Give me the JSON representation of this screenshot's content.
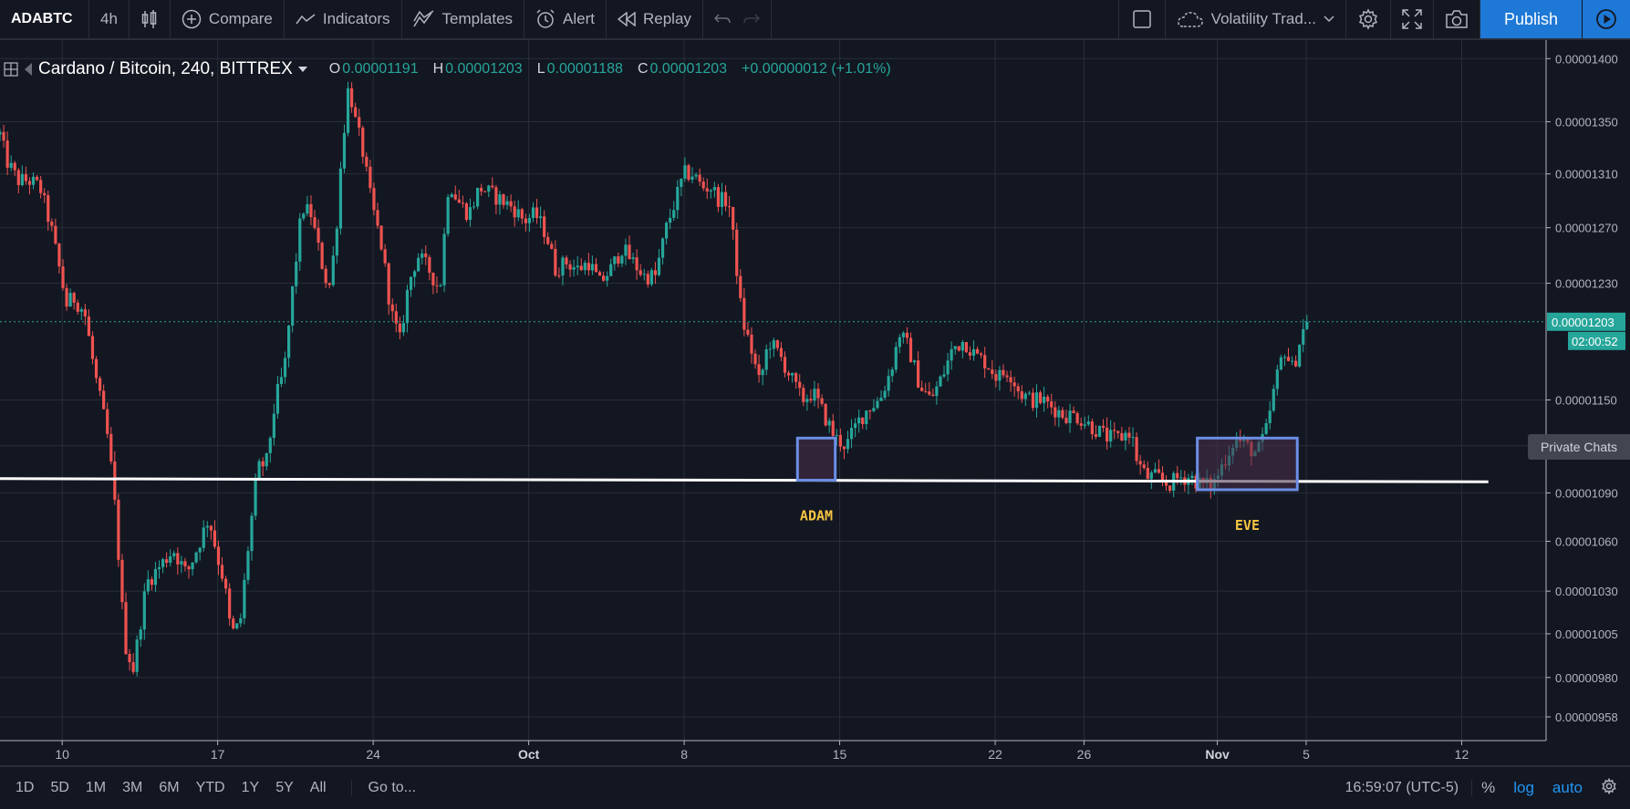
{
  "toolbar": {
    "symbol": "ADABTC",
    "interval": "4h",
    "compare": "Compare",
    "indicators": "Indicators",
    "templates": "Templates",
    "alert": "Alert",
    "replay": "Replay",
    "layout_name": "Volatility Trad...",
    "publish": "Publish"
  },
  "legend": {
    "title": "Cardano / Bitcoin, 240, BITTREX",
    "o_label": "O",
    "o_value": "0.00001191",
    "h_label": "H",
    "h_value": "0.00001203",
    "l_label": "L",
    "l_value": "0.00001188",
    "c_label": "C",
    "c_value": "0.00001203",
    "change": "+0.00000012 (+1.01%)"
  },
  "price_scale": {
    "last_price_label": "0.00001203",
    "countdown_label": "02:00:52",
    "private_chats": "Private Chats"
  },
  "bottom_bar": {
    "ranges": [
      "1D",
      "5D",
      "1M",
      "3M",
      "6M",
      "YTD",
      "1Y",
      "5Y",
      "All"
    ],
    "goto": "Go to...",
    "clock": "16:59:07 (UTC-5)",
    "percent": "%",
    "log": "log",
    "auto": "auto"
  },
  "colors": {
    "background": "#131722",
    "up": "#26a69a",
    "down": "#ef5350",
    "box_border": "#6b8ee6",
    "box_fill": "#4a2f4a",
    "support_line": "#ffffff",
    "annotation_text": "#f5c542"
  },
  "chart_data": {
    "type": "candlestick",
    "title": "Cardano / Bitcoin, 240, BITTREX",
    "y_scale": "log",
    "ylim": [
      9.45e-06,
      1.415e-05
    ],
    "y_ticks": [
      "0.00001400",
      "0.00001350",
      "0.00001310",
      "0.00001270",
      "0.00001230",
      "0.00001150",
      "0.00001120",
      "0.00001090",
      "0.00001060",
      "0.00001030",
      "0.00001005",
      "0.00000980",
      "0.00000958"
    ],
    "y_tick_values": [
      1.4e-05,
      1.35e-05,
      1.31e-05,
      1.27e-05,
      1.23e-05,
      1.15e-05,
      1.12e-05,
      1.09e-05,
      1.06e-05,
      1.03e-05,
      1.005e-05,
      9.8e-06,
      9.58e-06
    ],
    "x_ticks": [
      "10",
      "17",
      "24",
      "Oct",
      "8",
      "15",
      "22",
      "26",
      "Nov",
      "5",
      "12"
    ],
    "x_tick_days": [
      10,
      17,
      24,
      31,
      38,
      45,
      52,
      56,
      62,
      66,
      73
    ],
    "x_range_days": [
      7.2,
      76.8
    ],
    "last_price": 1.203e-05,
    "close_path": [
      [
        7.2,
        1.34e-05
      ],
      [
        7.5,
        1.32e-05
      ],
      [
        8,
        1.305e-05
      ],
      [
        8.5,
        1.305e-05
      ],
      [
        9,
        1.3e-05
      ],
      [
        9.5,
        1.27e-05
      ],
      [
        10.2,
        1.215e-05
      ],
      [
        10.5,
        1.22e-05
      ],
      [
        11,
        1.21e-05
      ],
      [
        11.5,
        1.165e-05
      ],
      [
        12,
        1.13e-05
      ],
      [
        12.3,
        1.095e-05
      ],
      [
        12.6,
        1.04e-05
      ],
      [
        12.8,
        1e-05
      ],
      [
        13.2,
        9.85e-06
      ],
      [
        13.8,
        1.035e-05
      ],
      [
        14.4,
        1.045e-05
      ],
      [
        15,
        1.055e-05
      ],
      [
        15.6,
        1.04e-05
      ],
      [
        16.2,
        1.06e-05
      ],
      [
        16.6,
        1.075e-05
      ],
      [
        17,
        1.05e-05
      ],
      [
        17.3,
        1.035e-05
      ],
      [
        17.6,
        1.005e-05
      ],
      [
        18,
        1.01e-05
      ],
      [
        18.4,
        1.06e-05
      ],
      [
        18.8,
        1.105e-05
      ],
      [
        19.2,
        1.11e-05
      ],
      [
        19.6,
        1.15e-05
      ],
      [
        20,
        1.17e-05
      ],
      [
        20.4,
        1.23e-05
      ],
      [
        20.8,
        1.285e-05
      ],
      [
        21.2,
        1.28e-05
      ],
      [
        21.6,
        1.25e-05
      ],
      [
        22,
        1.225e-05
      ],
      [
        22.3,
        1.26e-05
      ],
      [
        22.6,
        1.33e-05
      ],
      [
        22.9,
        1.38e-05
      ],
      [
        23.2,
        1.35e-05
      ],
      [
        23.5,
        1.33e-05
      ],
      [
        23.9,
        1.29e-05
      ],
      [
        24.4,
        1.255e-05
      ],
      [
        24.8,
        1.21e-05
      ],
      [
        25.2,
        1.19e-05
      ],
      [
        25.6,
        1.23e-05
      ],
      [
        26,
        1.25e-05
      ],
      [
        26.5,
        1.24e-05
      ],
      [
        27,
        1.225e-05
      ],
      [
        27.4,
        1.305e-05
      ],
      [
        27.8,
        1.29e-05
      ],
      [
        28.3,
        1.28e-05
      ],
      [
        28.8,
        1.3e-05
      ],
      [
        29.3,
        1.295e-05
      ],
      [
        29.8,
        1.29e-05
      ],
      [
        30.3,
        1.285e-05
      ],
      [
        30.8,
        1.275e-05
      ],
      [
        31.3,
        1.28e-05
      ],
      [
        31.8,
        1.265e-05
      ],
      [
        32.2,
        1.24e-05
      ],
      [
        32.7,
        1.245e-05
      ],
      [
        33.2,
        1.24e-05
      ],
      [
        33.7,
        1.245e-05
      ],
      [
        34.2,
        1.23e-05
      ],
      [
        34.7,
        1.24e-05
      ],
      [
        35.2,
        1.255e-05
      ],
      [
        35.7,
        1.245e-05
      ],
      [
        36.2,
        1.235e-05
      ],
      [
        36.7,
        1.235e-05
      ],
      [
        37.2,
        1.27e-05
      ],
      [
        37.6,
        1.29e-05
      ],
      [
        38,
        1.31e-05
      ],
      [
        38.4,
        1.31e-05
      ],
      [
        38.8,
        1.3e-05
      ],
      [
        39.2,
        1.3e-05
      ],
      [
        39.6,
        1.29e-05
      ],
      [
        40,
        1.29e-05
      ],
      [
        40.3,
        1.25e-05
      ],
      [
        40.6,
        1.205e-05
      ],
      [
        41,
        1.185e-05
      ],
      [
        41.4,
        1.16e-05
      ],
      [
        41.8,
        1.19e-05
      ],
      [
        42.3,
        1.18e-05
      ],
      [
        42.8,
        1.165e-05
      ],
      [
        43.3,
        1.15e-05
      ],
      [
        43.8,
        1.155e-05
      ],
      [
        44.3,
        1.14e-05
      ],
      [
        44.8,
        1.125e-05
      ],
      [
        45.3,
        1.12e-05
      ],
      [
        45.8,
        1.135e-05
      ],
      [
        46.3,
        1.145e-05
      ],
      [
        46.8,
        1.15e-05
      ],
      [
        47.3,
        1.17e-05
      ],
      [
        47.7,
        1.195e-05
      ],
      [
        48.1,
        1.185e-05
      ],
      [
        48.6,
        1.16e-05
      ],
      [
        49.1,
        1.15e-05
      ],
      [
        49.6,
        1.165e-05
      ],
      [
        50.1,
        1.185e-05
      ],
      [
        50.6,
        1.19e-05
      ],
      [
        51.1,
        1.18e-05
      ],
      [
        51.6,
        1.175e-05
      ],
      [
        52.1,
        1.165e-05
      ],
      [
        52.6,
        1.17e-05
      ],
      [
        53.1,
        1.155e-05
      ],
      [
        53.6,
        1.15e-05
      ],
      [
        54.1,
        1.15e-05
      ],
      [
        54.6,
        1.145e-05
      ],
      [
        55.1,
        1.14e-05
      ],
      [
        55.6,
        1.14e-05
      ],
      [
        56.1,
        1.135e-05
      ],
      [
        56.6,
        1.13e-05
      ],
      [
        57.1,
        1.125e-05
      ],
      [
        57.6,
        1.125e-05
      ],
      [
        58.1,
        1.13e-05
      ],
      [
        58.4,
        1.11e-05
      ],
      [
        58.8,
        1.1e-05
      ],
      [
        59.3,
        1.1e-05
      ],
      [
        59.8,
        1.095e-05
      ],
      [
        60.3,
        1.1e-05
      ],
      [
        60.8,
        1.1e-05
      ],
      [
        61.3,
        1.095e-05
      ],
      [
        61.8,
        1.095e-05
      ],
      [
        62.3,
        1.11e-05
      ],
      [
        62.8,
        1.125e-05
      ],
      [
        63.3,
        1.12e-05
      ],
      [
        63.8,
        1.115e-05
      ],
      [
        64.2,
        1.13e-05
      ],
      [
        64.6,
        1.16e-05
      ],
      [
        65,
        1.185e-05
      ],
      [
        65.4,
        1.17e-05
      ],
      [
        65.8,
        1.195e-05
      ],
      [
        66.1,
        1.203e-05
      ]
    ],
    "annotations": [
      {
        "label": "ADAM",
        "x_days": [
          43.1,
          44.8
        ],
        "y_range": [
          1.098e-05,
          1.125e-05
        ]
      },
      {
        "label": "EVE",
        "x_days": [
          61.1,
          65.6
        ],
        "y_range": [
          1.092e-05,
          1.125e-05
        ]
      }
    ],
    "support_line": {
      "x_days": [
        7.2,
        74.2
      ],
      "y": [
        1.099e-05,
        1.097e-05
      ]
    }
  }
}
